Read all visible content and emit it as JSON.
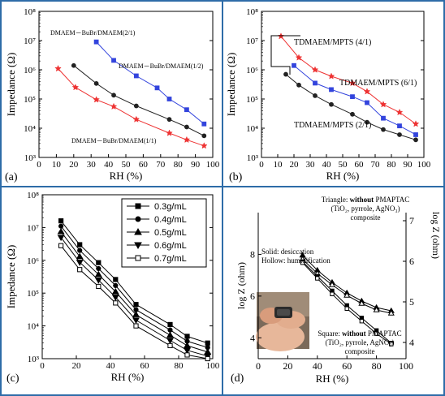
{
  "figure": {
    "border_color": "#2e6ca8",
    "panels": [
      {
        "letter": "(a)",
        "xlabel": "RH (%)",
        "ylabel": "Impedance (Ω)",
        "xticks": [
          "0",
          "10",
          "20",
          "30",
          "40",
          "50",
          "60",
          "70",
          "80",
          "90",
          "100"
        ],
        "yticks": [
          "10³",
          "10⁴",
          "10⁵",
          "10⁶",
          "10⁷",
          "10⁸"
        ],
        "annotations": [
          "DMAEM－BuBr/DMAEM(2/1)",
          "DMAEM－BuBr/DMAEM(1/2)",
          "DMAEM－BuBr/DMAEM(1/1)"
        ]
      },
      {
        "letter": "(b)",
        "xlabel": "RH (%)",
        "ylabel": "Impedance (Ω)",
        "xticks": [
          "0",
          "10",
          "20",
          "30",
          "40",
          "50",
          "60",
          "70",
          "80",
          "90",
          "100"
        ],
        "yticks": [
          "10³",
          "10⁴",
          "10⁵",
          "10⁶",
          "10⁷",
          "10⁸"
        ],
        "annotations": [
          "TDMAEM/MPTS (4/1)",
          "TDMAEM/MPTS (6/1)",
          "TDMAEM/MPTS (2/1)"
        ]
      },
      {
        "letter": "(c)",
        "xlabel": "RH (%)",
        "ylabel": "Impedance (Ω)",
        "xticks": [
          "0",
          "20",
          "40",
          "60",
          "80",
          "100"
        ],
        "yticks": [
          "10³",
          "10⁴",
          "10⁵",
          "10⁶",
          "10⁷",
          "10⁸"
        ]
      },
      {
        "letter": "(d)",
        "xlabel": "RH (%)",
        "ylabel_left": "log Z (ohm)",
        "ylabel_right": "log Z (ohm)",
        "xticks": [
          "0",
          "20",
          "40",
          "60",
          "80",
          "100"
        ],
        "yticks_left": [
          "4",
          "6",
          "8"
        ],
        "yticks_right": [
          "4",
          "5",
          "6",
          "7"
        ],
        "note_solid": "Solid: desiccation",
        "note_hollow": "Hollow: humidification",
        "triangle_label": [
          "Triangle: ",
          "without",
          " PMAPTAC",
          "(TiO₂, pyrrole, AgNO₃)",
          "composite"
        ],
        "square_label": [
          "Square: ",
          "without",
          " PMAPTAC",
          "(TiO₂, pyrrole, AgNO₃)",
          "composite"
        ]
      }
    ]
  },
  "chart_data": [
    {
      "type": "line",
      "yscale": "log",
      "xlim": [
        0,
        100
      ],
      "ylim": [
        1000,
        100000000
      ],
      "x_label": "RH (%)",
      "y_label": "Impedance (Ω)",
      "series": [
        {
          "name": "DMAEM－BuBr/DMAEM(1/2)",
          "color": "#3344dd",
          "marker": "square",
          "x": [
            33,
            43,
            56,
            68,
            75,
            85,
            95
          ],
          "y": [
            9000000,
            2100000,
            620000,
            240000,
            100000,
            43000,
            14000
          ]
        },
        {
          "name": "DMAEM－BuBr/DMAEM(2/1)",
          "color": "#222222",
          "marker": "circle",
          "x": [
            20,
            33,
            43,
            56,
            75,
            85,
            95
          ],
          "y": [
            1400000,
            340000,
            135000,
            58000,
            20000,
            11000,
            5500
          ]
        },
        {
          "name": "DMAEM－BuBr/DMAEM(1/1)",
          "color": "#ee3333",
          "marker": "star",
          "x": [
            11,
            21,
            33,
            43,
            56,
            75,
            85,
            95
          ],
          "y": [
            1100000,
            250000,
            95000,
            55000,
            20000,
            6800,
            4000,
            2500
          ]
        }
      ]
    },
    {
      "type": "line",
      "yscale": "log",
      "xlim": [
        0,
        100
      ],
      "ylim": [
        1000,
        100000000
      ],
      "x_label": "RH (%)",
      "y_label": "Impedance (Ω)",
      "series": [
        {
          "name": "TDMAEM/MPTS (4/1)",
          "color": "#ee3333",
          "marker": "star",
          "x": [
            12,
            23,
            33,
            43,
            56,
            65,
            75,
            85,
            95
          ],
          "y": [
            14000000,
            2600000,
            1000000,
            600000,
            350000,
            180000,
            65000,
            35000,
            14000
          ]
        },
        {
          "name": "TDMAEM/MPTS (6/1)",
          "color": "#3344dd",
          "marker": "square",
          "x": [
            20,
            33,
            43,
            56,
            65,
            75,
            85,
            95
          ],
          "y": [
            1400000,
            350000,
            210000,
            120000,
            75000,
            22000,
            12000,
            6000
          ]
        },
        {
          "name": "TDMAEM/MPTS (2/1)",
          "color": "#222222",
          "marker": "circle",
          "x": [
            15,
            23,
            33,
            43,
            56,
            65,
            75,
            85,
            95
          ],
          "y": [
            700000,
            300000,
            130000,
            65000,
            30000,
            16000,
            9000,
            6000,
            4000
          ]
        }
      ]
    },
    {
      "type": "line",
      "yscale": "log",
      "xlim": [
        0,
        100
      ],
      "ylim": [
        1000,
        100000000
      ],
      "x_label": "RH (%)",
      "y_label": "Impedance (Ω)",
      "legend": "top-right",
      "series": [
        {
          "name": "0.3g/mL",
          "marker": "square",
          "x": [
            11,
            22,
            33,
            43,
            55,
            75,
            85,
            97
          ],
          "y": [
            16000000,
            3000000,
            850000,
            260000,
            45000,
            11000,
            4800,
            3000
          ]
        },
        {
          "name": "0.4g/mL",
          "marker": "circle",
          "x": [
            11,
            22,
            33,
            43,
            55,
            75,
            85,
            97
          ],
          "y": [
            11000000,
            2000000,
            560000,
            170000,
            31000,
            7500,
            3400,
            2200
          ]
        },
        {
          "name": "0.5g/mL",
          "marker": "triangle-up",
          "x": [
            11,
            22,
            33,
            43,
            55,
            75,
            85,
            97
          ],
          "y": [
            7500000,
            1300000,
            370000,
            110000,
            22000,
            5200,
            2500,
            1600
          ]
        },
        {
          "name": "0.6g/mL",
          "marker": "triangle-down",
          "x": [
            11,
            22,
            33,
            43,
            55,
            75,
            85,
            97
          ],
          "y": [
            5000000,
            870000,
            250000,
            75000,
            15000,
            3600,
            1800,
            1200
          ]
        },
        {
          "name": "0.7g/mL",
          "marker": "square-open",
          "x": [
            11,
            22,
            33,
            43,
            55,
            75,
            85,
            97
          ],
          "y": [
            2800000,
            520000,
            160000,
            50000,
            10000,
            2500,
            1300,
            1000
          ]
        }
      ]
    },
    {
      "type": "line",
      "xlim": [
        0,
        100
      ],
      "y_left_label": "log Z (ohm)",
      "y_right_label": "log Z (ohm)",
      "y_left_lim": [
        3,
        10
      ],
      "y_right_lim": [
        3.6,
        7.2
      ],
      "series": [
        {
          "name": "Triangle, solid",
          "axis": "right",
          "marker": "triangle",
          "filled": true,
          "x": [
            30,
            40,
            50,
            60,
            70,
            80,
            90
          ],
          "y": [
            6.15,
            5.78,
            5.48,
            5.22,
            5.02,
            4.86,
            4.78
          ]
        },
        {
          "name": "Triangle, hollow",
          "axis": "right",
          "marker": "triangle",
          "filled": false,
          "x": [
            30,
            40,
            50,
            60,
            70,
            80,
            90
          ],
          "y": [
            6.05,
            5.7,
            5.42,
            5.16,
            4.96,
            4.8,
            4.72
          ]
        },
        {
          "name": "Square, solid",
          "axis": "left",
          "marker": "square",
          "filled": true,
          "x": [
            30,
            40,
            50,
            60,
            70,
            80,
            90
          ],
          "y": [
            7.65,
            6.95,
            6.25,
            5.55,
            4.95,
            4.35,
            3.75
          ]
        },
        {
          "name": "Square, hollow",
          "axis": "left",
          "marker": "square",
          "filled": false,
          "x": [
            30,
            40,
            50,
            60,
            70,
            80,
            90
          ],
          "y": [
            7.6,
            6.85,
            6.1,
            5.4,
            4.8,
            4.2,
            3.7
          ]
        }
      ]
    }
  ]
}
